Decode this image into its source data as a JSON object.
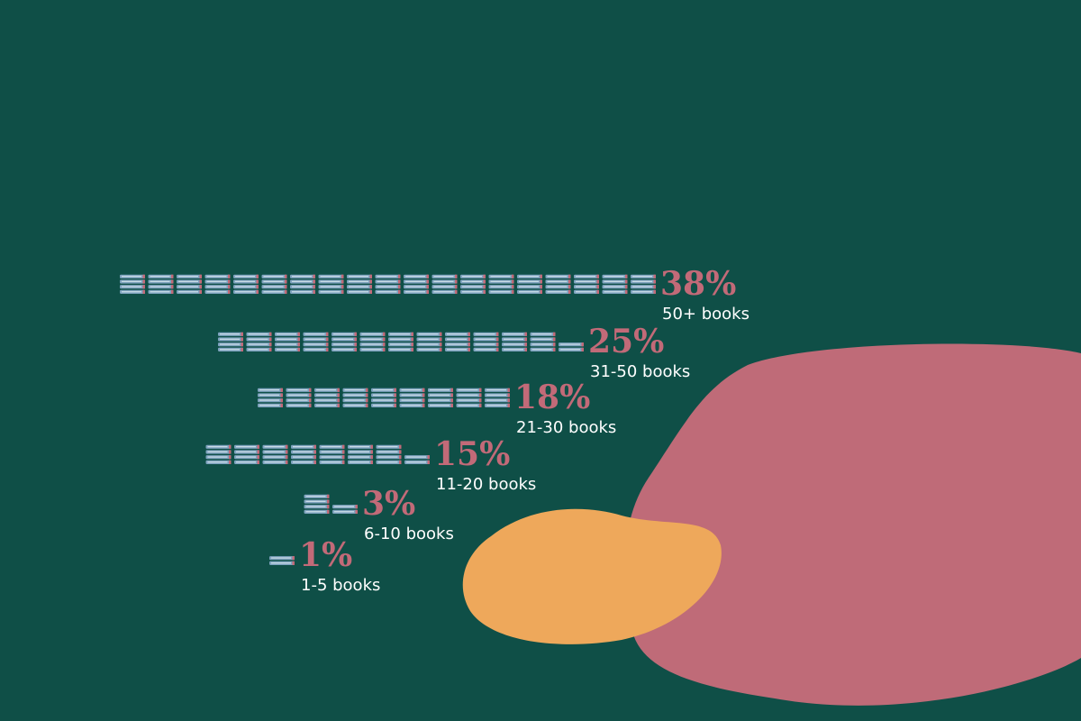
{
  "colors": {
    "background": "#0f4f47",
    "percent_text": "#c26a78",
    "label_text": "#ffffff",
    "book_body": "#7fa3bf",
    "book_stripe": "#c9dbe6",
    "book_spine": "#c26a78",
    "blob_pink": "#bf6b78",
    "blob_orange": "#eea85b"
  },
  "chart_data": {
    "type": "bar",
    "categories": [
      "1-5 books",
      "6-10 books",
      "11-20 books",
      "21-30 books",
      "31-50 books",
      "50+ books"
    ],
    "values": [
      1,
      3,
      15,
      18,
      25,
      38
    ],
    "value_labels": [
      "1%",
      "3%",
      "15%",
      "18%",
      "25%",
      "38%"
    ],
    "title": "",
    "xlabel": "",
    "ylabel": "",
    "legend": "none",
    "grid": false
  }
}
